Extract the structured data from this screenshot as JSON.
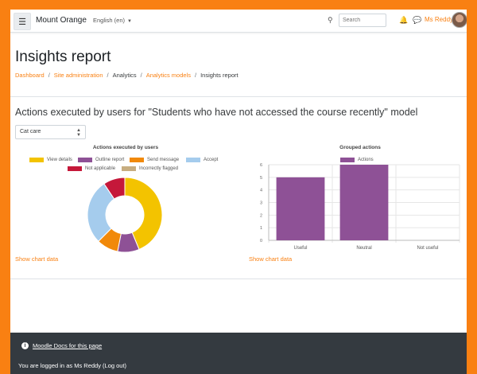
{
  "navbar": {
    "site_name": "Mount Orange",
    "language": "English (en)",
    "search_placeholder": "Search",
    "user_name": "Ms Reddy"
  },
  "header": {
    "title": "Insights report",
    "breadcrumb": [
      "Dashboard",
      "Site administration",
      "Analytics",
      "Analytics models",
      "Insights report"
    ]
  },
  "main": {
    "subtitle": "Actions executed by users for \"Students who have not accessed the course recently\" model",
    "select_value": "Cat care",
    "show_chart_data": "Show chart data"
  },
  "chart_data": [
    {
      "type": "pie",
      "title": "Actions executed by users",
      "categories": [
        "View details",
        "Outline report",
        "Send message",
        "Accept",
        "Not applicable",
        "Incorrectly flagged"
      ],
      "values": [
        14,
        3,
        3,
        9,
        3,
        0
      ],
      "colors": [
        "#f3c300",
        "#8e5196",
        "#f1890a",
        "#a5cced",
        "#c5183a",
        "#c7ad80"
      ],
      "legend": "top"
    },
    {
      "type": "bar",
      "title": "Grouped actions",
      "categories": [
        "Useful",
        "Neutral",
        "Not useful"
      ],
      "series": [
        {
          "name": "Actions",
          "values": [
            5,
            6,
            0
          ]
        }
      ],
      "color": "#8e5196",
      "ylim": [
        0,
        6
      ],
      "yticks": [
        "0",
        "1",
        "2",
        "3",
        "4",
        "5",
        "6"
      ],
      "legend": "top"
    }
  ],
  "footer": {
    "docs_link": "Moodle Docs for this page",
    "logged_in": "You are logged in as Ms Reddy (Log out)"
  }
}
